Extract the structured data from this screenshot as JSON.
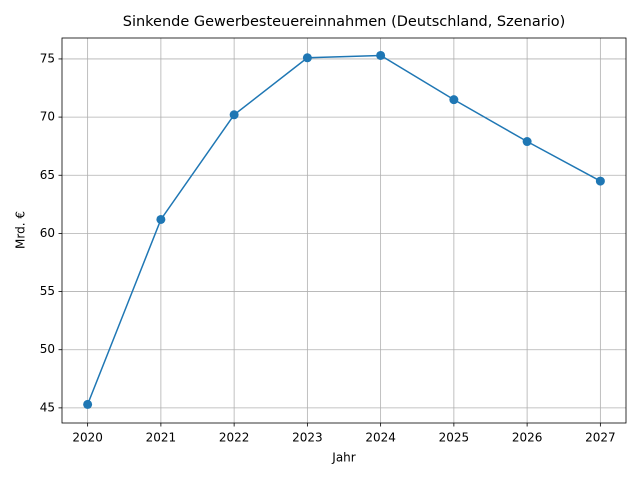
{
  "chart_data": {
    "type": "line",
    "title": "Sinkende Gewerbesteuereinnahmen (Deutschland, Szenario)",
    "x_label": "Jahr",
    "y_label": "Mrd. €",
    "x": [
      2020,
      2021,
      2022,
      2023,
      2024,
      2025,
      2026,
      2027
    ],
    "series": [
      {
        "name": "Gewerbesteuereinnahmen",
        "color": "#1f77b4",
        "values": [
          45.3,
          61.2,
          70.2,
          75.1,
          75.3,
          71.5,
          67.9,
          64.5
        ]
      }
    ],
    "xlim": [
      2019.65,
      2027.35
    ],
    "xticks": [
      2020,
      2021,
      2022,
      2023,
      2024,
      2025,
      2026,
      2027
    ],
    "ylim": [
      43.7,
      76.8
    ],
    "yticks": [
      45,
      50,
      55,
      60,
      65,
      70,
      75
    ],
    "grid": true
  }
}
